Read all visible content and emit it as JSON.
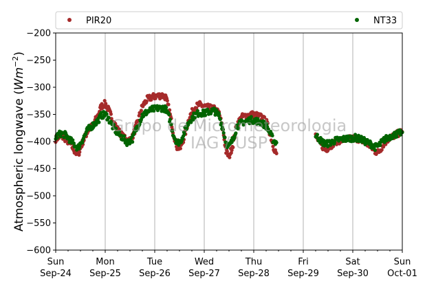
{
  "chart_data": {
    "type": "scatter",
    "title": "",
    "xlabel": "",
    "ylabel": "Atmospheric longwave (",
    "ylabel_unit": "Wm",
    "ylabel_exp": "−2",
    "ylabel_close": ")",
    "watermark_line1": "Grupo de Micrometeorologia",
    "watermark_line2": "IAG / USP",
    "ylim": [
      -600,
      -200
    ],
    "yticks": [
      -200,
      -250,
      -300,
      -350,
      -400,
      -450,
      -500,
      -550,
      -600
    ],
    "ytick_labels": [
      "−200",
      "−250",
      "−300",
      "−350",
      "−400",
      "−450",
      "−500",
      "−550",
      "−600"
    ],
    "xlim": [
      0,
      7
    ],
    "xticks": [
      {
        "day": 0,
        "top": "Sun",
        "bottom": "Sep-24"
      },
      {
        "day": 1,
        "top": "Mon",
        "bottom": "Sep-25"
      },
      {
        "day": 2,
        "top": "Tue",
        "bottom": "Sep-26"
      },
      {
        "day": 3,
        "top": "Wed",
        "bottom": "Sep-27"
      },
      {
        "day": 4,
        "top": "Thu",
        "bottom": "Sep-28"
      },
      {
        "day": 5,
        "top": "Fri",
        "bottom": "Sep-29"
      },
      {
        "day": 6,
        "top": "Sat",
        "bottom": "Sep-30"
      },
      {
        "day": 7,
        "top": "Sun",
        "bottom": "Oct-01"
      }
    ],
    "grid": "x",
    "legend_placement": "top",
    "series": [
      {
        "name": "PIR20",
        "color": "#a52a2a",
        "segments": [
          [
            [
              0.0,
              -395
            ],
            [
              0.1,
              -390
            ],
            [
              0.2,
              -395
            ],
            [
              0.3,
              -405
            ],
            [
              0.4,
              -420
            ],
            [
              0.45,
              -425
            ],
            [
              0.55,
              -400
            ],
            [
              0.65,
              -380
            ],
            [
              0.75,
              -370
            ],
            [
              0.85,
              -352
            ],
            [
              0.92,
              -335
            ],
            [
              1.0,
              -330
            ],
            [
              1.05,
              -338
            ],
            [
              1.15,
              -360
            ],
            [
              1.25,
              -378
            ],
            [
              1.35,
              -390
            ],
            [
              1.45,
              -400
            ],
            [
              1.55,
              -392
            ],
            [
              1.65,
              -365
            ],
            [
              1.75,
              -335
            ],
            [
              1.85,
              -322
            ],
            [
              1.95,
              -318
            ],
            [
              2.05,
              -316
            ],
            [
              2.15,
              -315
            ],
            [
              2.22,
              -318
            ],
            [
              2.3,
              -345
            ],
            [
              2.38,
              -385
            ],
            [
              2.45,
              -410
            ],
            [
              2.52,
              -412
            ],
            [
              2.6,
              -390
            ],
            [
              2.7,
              -355
            ],
            [
              2.8,
              -338
            ],
            [
              2.9,
              -332
            ],
            [
              3.0,
              -335
            ],
            [
              3.1,
              -338
            ],
            [
              3.2,
              -340
            ],
            [
              3.3,
              -348
            ],
            [
              3.38,
              -380
            ],
            [
              3.44,
              -418
            ],
            [
              3.5,
              -428
            ],
            [
              3.58,
              -405
            ],
            [
              3.66,
              -368
            ],
            [
              3.76,
              -355
            ],
            [
              3.86,
              -352
            ],
            [
              3.96,
              -350
            ],
            [
              4.06,
              -352
            ],
            [
              4.16,
              -355
            ],
            [
              4.26,
              -365
            ],
            [
              4.33,
              -385
            ],
            [
              4.4,
              -410
            ],
            [
              4.46,
              -422
            ]
          ],
          [
            [
              5.25,
              -390
            ],
            [
              5.35,
              -405
            ],
            [
              5.45,
              -415
            ],
            [
              5.55,
              -408
            ],
            [
              5.65,
              -400
            ],
            [
              5.75,
              -398
            ],
            [
              5.85,
              -396
            ],
            [
              5.95,
              -395
            ],
            [
              6.05,
              -394
            ],
            [
              6.15,
              -396
            ],
            [
              6.25,
              -402
            ],
            [
              6.35,
              -408
            ],
            [
              6.45,
              -418
            ],
            [
              6.52,
              -420
            ],
            [
              6.62,
              -405
            ],
            [
              6.72,
              -395
            ],
            [
              6.82,
              -390
            ],
            [
              6.92,
              -385
            ],
            [
              7.0,
              -382
            ]
          ]
        ]
      },
      {
        "name": "NT33",
        "color": "#006400",
        "segments": [
          [
            [
              0.0,
              -392
            ],
            [
              0.1,
              -385
            ],
            [
              0.2,
              -388
            ],
            [
              0.3,
              -398
            ],
            [
              0.4,
              -408
            ],
            [
              0.45,
              -412
            ],
            [
              0.55,
              -395
            ],
            [
              0.65,
              -378
            ],
            [
              0.75,
              -370
            ],
            [
              0.85,
              -362
            ],
            [
              0.92,
              -352
            ],
            [
              1.0,
              -350
            ],
            [
              1.05,
              -355
            ],
            [
              1.15,
              -372
            ],
            [
              1.25,
              -385
            ],
            [
              1.35,
              -393
            ],
            [
              1.45,
              -402
            ],
            [
              1.55,
              -395
            ],
            [
              1.65,
              -372
            ],
            [
              1.75,
              -352
            ],
            [
              1.85,
              -345
            ],
            [
              1.95,
              -341
            ],
            [
              2.05,
              -339
            ],
            [
              2.15,
              -338
            ],
            [
              2.22,
              -340
            ],
            [
              2.3,
              -358
            ],
            [
              2.38,
              -388
            ],
            [
              2.45,
              -402
            ],
            [
              2.52,
              -400
            ],
            [
              2.6,
              -382
            ],
            [
              2.7,
              -362
            ],
            [
              2.8,
              -352
            ],
            [
              2.9,
              -347
            ],
            [
              3.0,
              -348
            ],
            [
              3.1,
              -345
            ],
            [
              3.2,
              -343
            ],
            [
              3.3,
              -352
            ],
            [
              3.38,
              -378
            ],
            [
              3.44,
              -402
            ],
            [
              3.5,
              -410
            ],
            [
              3.58,
              -396
            ],
            [
              3.66,
              -372
            ],
            [
              3.76,
              -365
            ],
            [
              3.86,
              -362
            ],
            [
              3.96,
              -360
            ],
            [
              4.06,
              -362
            ],
            [
              4.16,
              -365
            ],
            [
              4.26,
              -372
            ],
            [
              4.33,
              -385
            ],
            [
              4.4,
              -398
            ],
            [
              4.46,
              -402
            ]
          ],
          [
            [
              5.25,
              -388
            ],
            [
              5.35,
              -398
            ],
            [
              5.45,
              -405
            ],
            [
              5.55,
              -402
            ],
            [
              5.65,
              -398
            ],
            [
              5.75,
              -396
            ],
            [
              5.85,
              -395
            ],
            [
              5.95,
              -394
            ],
            [
              6.05,
              -393
            ],
            [
              6.15,
              -395
            ],
            [
              6.25,
              -400
            ],
            [
              6.35,
              -404
            ],
            [
              6.45,
              -410
            ],
            [
              6.52,
              -408
            ],
            [
              6.62,
              -398
            ],
            [
              6.72,
              -392
            ],
            [
              6.82,
              -388
            ],
            [
              6.92,
              -385
            ],
            [
              7.0,
              -383
            ]
          ]
        ]
      }
    ]
  }
}
